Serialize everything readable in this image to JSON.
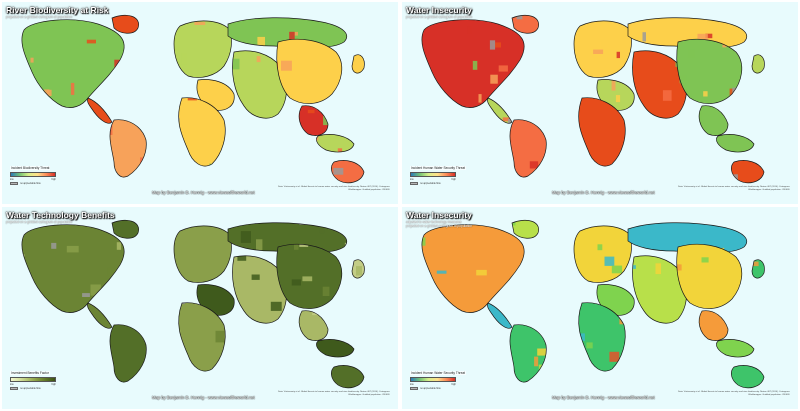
{
  "panels": [
    {
      "title": "River Biodiversity at Risk",
      "subtitle": "projected on a gridded cartogram of population",
      "subtitle2": "",
      "legend_label": "Incident Biodiversity Threat",
      "legend_low": "low",
      "legend_high": "high",
      "legend_none": "no appreciable flow",
      "credit": "Map by Benjamin D. Hennig - www.viewsoftheworld.net",
      "sources": "Data: Vörösmarty et al. Global threats to human water security and river biodiversity. Nature 467 (2010). Cartogram: Worldmapper. Gridded population: CIESIN.",
      "palette": [
        "#2c7bb6",
        "#74c476",
        "#d9ef8b",
        "#fee08b",
        "#fc8d59",
        "#d73027"
      ],
      "map_colors": [
        "#d73027",
        "#e74c1b",
        "#f46d43",
        "#f7a25a",
        "#fdd04a",
        "#b7d65b",
        "#7fc454",
        "#9a9a9a"
      ]
    },
    {
      "title": "Water Insecurity",
      "subtitle": "projected on a gridded cartogram of population",
      "subtitle2": "",
      "legend_label": "Incident Human Water Security Threat",
      "legend_low": "low",
      "legend_high": "high",
      "legend_none": "no appreciable flow",
      "credit": "Map by Benjamin D. Hennig - www.viewsoftheworld.net",
      "sources": "Data: Vörösmarty et al. Global threats to human water security and river biodiversity. Nature 467 (2010). Cartogram: Worldmapper. Gridded population: CIESIN.",
      "palette": [
        "#2c7bb6",
        "#74c476",
        "#d9ef8b",
        "#fee08b",
        "#fc8d59",
        "#d73027"
      ],
      "map_colors": [
        "#d73027",
        "#e74c1b",
        "#f46d43",
        "#f7a25a",
        "#fdd04a",
        "#b7d65b",
        "#7fc454",
        "#9a9a9a"
      ]
    },
    {
      "title": "Water Technology Benefits",
      "subtitle": "projected on a gridded cartogram of population",
      "subtitle2": "",
      "legend_label": "Investment Benefits Factor",
      "legend_low": "low",
      "legend_high": "high",
      "legend_none": "no appreciable flow",
      "credit": "Map by Benjamin D. Hennig - www.viewsoftheworld.net",
      "sources": "Data: Vörösmarty et al. Global threats to human water security and river biodiversity. Nature 467 (2010). Cartogram: Worldmapper. Gridded population: CIESIN.",
      "palette": [
        "#f4f7d0",
        "#d7e2a0",
        "#aebf6a",
        "#84993f",
        "#5e7426",
        "#3b5216"
      ],
      "map_colors": [
        "#3f5a1c",
        "#536f28",
        "#6b8434",
        "#8a9f4a",
        "#a9b866",
        "#c3cd86",
        "#9a9a9a"
      ]
    },
    {
      "title": "Water Insecurity",
      "subtitle": "adjusted to water technology measures",
      "subtitle2": "projected on a gridded cartogram of population",
      "legend_label": "Incident Human Water Security Threat",
      "legend_low": "low",
      "legend_high": "high",
      "legend_none": "no appreciable flow",
      "credit": "Map by Benjamin D. Hennig - www.viewsoftheworld.net",
      "sources": "Data: Vörösmarty et al. Global threats to human water security and river biodiversity. Nature 467 (2010). Cartogram: Worldmapper. Gridded population: CIESIN.",
      "palette": [
        "#2c7bb6",
        "#74c476",
        "#d9ef8b",
        "#fee08b",
        "#fc8d59",
        "#d73027"
      ],
      "map_colors": [
        "#3ec46a",
        "#7fd34e",
        "#b8e04a",
        "#f2d43a",
        "#f59b3a",
        "#e5532a",
        "#3bb8c9",
        "#9a9a9a"
      ]
    }
  ]
}
